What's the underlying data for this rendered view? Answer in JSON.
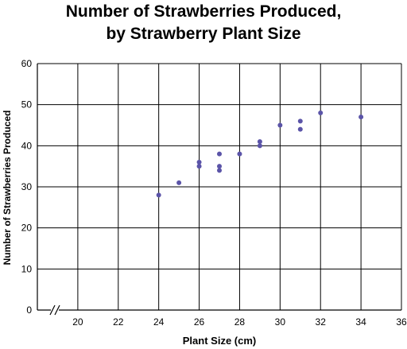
{
  "chart_data": {
    "type": "scatter",
    "title": [
      "Number of Strawberries Produced,",
      "by Strawberry Plant Size"
    ],
    "xlabel": "Plant Size (cm)",
    "ylabel": "Number of Strawberries Produced",
    "x_ticks": [
      20,
      22,
      24,
      26,
      28,
      30,
      32,
      34,
      36
    ],
    "y_ticks": [
      0,
      10,
      20,
      30,
      40,
      50,
      60
    ],
    "xlim": [
      18,
      36
    ],
    "ylim": [
      0,
      60
    ],
    "x_axis_break": true,
    "grid": true,
    "point_color": "#5b54a8",
    "points": [
      {
        "x": 24,
        "y": 28
      },
      {
        "x": 25,
        "y": 31
      },
      {
        "x": 26,
        "y": 36
      },
      {
        "x": 26,
        "y": 35
      },
      {
        "x": 27,
        "y": 38
      },
      {
        "x": 27,
        "y": 35
      },
      {
        "x": 27,
        "y": 34
      },
      {
        "x": 28,
        "y": 38
      },
      {
        "x": 29,
        "y": 41
      },
      {
        "x": 29,
        "y": 40
      },
      {
        "x": 30,
        "y": 45
      },
      {
        "x": 31,
        "y": 46
      },
      {
        "x": 31,
        "y": 44
      },
      {
        "x": 32,
        "y": 48
      },
      {
        "x": 34,
        "y": 47
      }
    ]
  }
}
